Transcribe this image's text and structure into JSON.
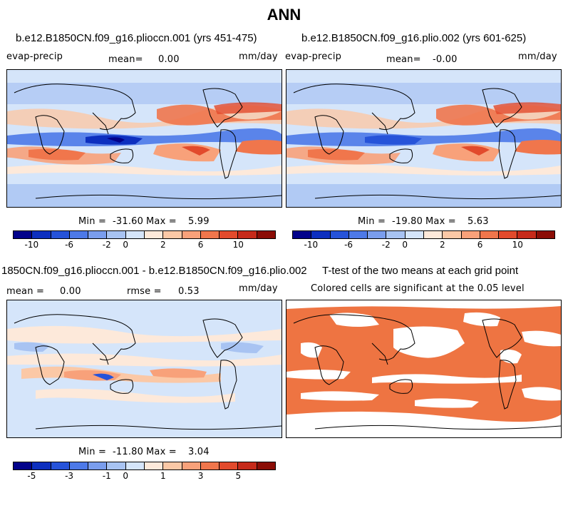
{
  "page_title": "ANN",
  "chart_data": [
    {
      "type": "heatmap",
      "title": "b.e12.B1850CN.f09_g16.plioccn.001 (yrs 451-475)",
      "variable": "evap-precip",
      "mean_label": "mean=",
      "mean_value": "0.00",
      "units": "mm/day",
      "min_label": "Min =",
      "min_value": "-31.60",
      "max_label": "Max =",
      "max_value": "5.99",
      "colorbar": {
        "colors": [
          "#02028a",
          "#0d2fbf",
          "#2653d9",
          "#4d79e8",
          "#7a9ded",
          "#a8c3f2",
          "#d5e5fa",
          "#fde9da",
          "#fbc8a6",
          "#f8a17a",
          "#f0764c",
          "#e24a2c",
          "#c62a1a",
          "#8b0d06"
        ],
        "tick_labels": [
          "-10",
          "-6",
          "-2",
          "0",
          "2",
          "6",
          "10"
        ],
        "tick_boundaries": [
          1,
          3,
          5,
          6,
          8,
          10,
          12
        ]
      }
    },
    {
      "type": "heatmap",
      "title": "b.e12.B1850CN.f09_g16.plio.002 (yrs 601-625)",
      "variable": "evap-precip",
      "mean_label": "mean=",
      "mean_value": "-0.00",
      "units": "mm/day",
      "min_label": "Min =",
      "min_value": "-19.80",
      "max_label": "Max =",
      "max_value": "5.63",
      "colorbar": {
        "colors": [
          "#02028a",
          "#0d2fbf",
          "#2653d9",
          "#4d79e8",
          "#7a9ded",
          "#a8c3f2",
          "#d5e5fa",
          "#fde9da",
          "#fbc8a6",
          "#f8a17a",
          "#f0764c",
          "#e24a2c",
          "#c62a1a",
          "#8b0d06"
        ],
        "tick_labels": [
          "-10",
          "-6",
          "-2",
          "0",
          "2",
          "6",
          "10"
        ],
        "tick_boundaries": [
          1,
          3,
          5,
          6,
          8,
          10,
          12
        ]
      }
    },
    {
      "type": "heatmap",
      "title": "1850CN.f09_g16.plioccn.001 - b.e12.B1850CN.f09_g16.plio.002",
      "mean_label": "mean =",
      "mean_value": "0.00",
      "rmse_label": "rmse =",
      "rmse_value": "0.53",
      "units": "mm/day",
      "min_label": "Min =",
      "min_value": "-11.80",
      "max_label": "Max =",
      "max_value": "3.04",
      "colorbar": {
        "colors": [
          "#02028a",
          "#0d2fbf",
          "#2653d9",
          "#4d79e8",
          "#7a9ded",
          "#a8c3f2",
          "#d5e5fa",
          "#fde9da",
          "#fbc8a6",
          "#f8a17a",
          "#f0764c",
          "#e24a2c",
          "#c62a1a",
          "#8b0d06"
        ],
        "tick_labels": [
          "-5",
          "-3",
          "-1",
          "0",
          "1",
          "3",
          "5"
        ],
        "tick_boundaries": [
          1,
          3,
          5,
          6,
          8,
          10,
          12
        ]
      }
    },
    {
      "type": "heatmap",
      "title": "T-test of the two means at each grid point",
      "subtitle": "Colored cells are significant at the 0.05 level",
      "significant_color": "#ee7442"
    }
  ]
}
